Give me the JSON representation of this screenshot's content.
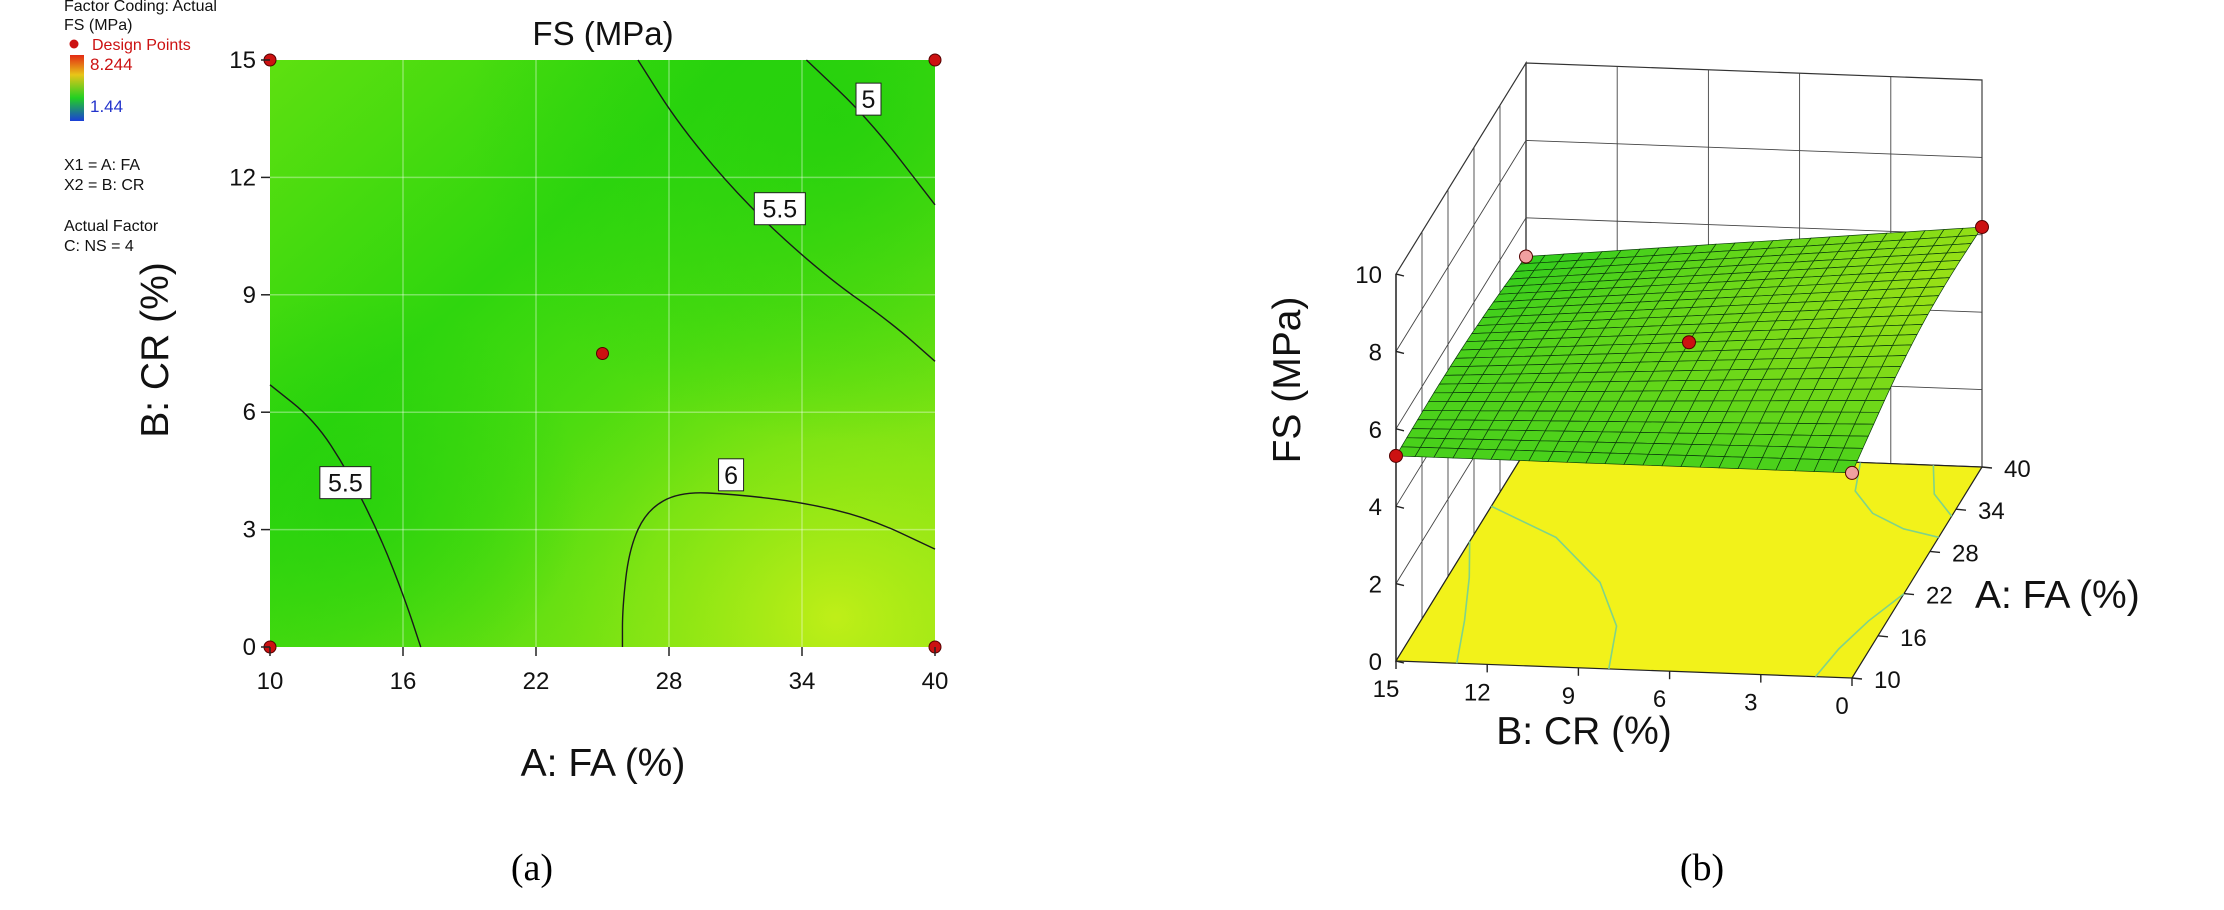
{
  "chart_data": [
    {
      "type": "contour",
      "panel_label": "(a)",
      "title": "FS (MPa)",
      "xlabel": "A: FA (%)",
      "ylabel": "B: CR (%)",
      "xlim": [
        10,
        40
      ],
      "ylim": [
        0,
        15
      ],
      "x_ticks": [
        "10",
        "16",
        "22",
        "28",
        "34",
        "40"
      ],
      "y_ticks": [
        "0",
        "3",
        "6",
        "9",
        "12",
        "15"
      ],
      "grid": true,
      "legend": {
        "factor_coding": "Factor Coding: Actual",
        "response": "FS (MPa)",
        "design_points": "Design Points",
        "max_value": "8.244",
        "min_value": "1.44",
        "x1": "X1 = A: FA",
        "x2": "X2 = B: CR",
        "actual_factor_title": "Actual Factor",
        "actual_factor": "C: NS = 4"
      },
      "design_points": [
        {
          "x": 10,
          "y": 15
        },
        {
          "x": 40,
          "y": 15
        },
        {
          "x": 25,
          "y": 7.5
        },
        {
          "x": 10,
          "y": 0
        },
        {
          "x": 40,
          "y": 0
        }
      ],
      "contours": [
        {
          "level": "5",
          "points": [
            [
              34.2,
              15
            ],
            [
              37,
              13.5
            ],
            [
              40,
              11.3
            ]
          ]
        },
        {
          "level": "5.5",
          "points": [
            [
              26.6,
              15
            ],
            [
              28.5,
              13.3
            ],
            [
              31.5,
              11.3
            ],
            [
              35,
              9.5
            ],
            [
              38,
              8.3
            ],
            [
              40,
              7.3
            ]
          ]
        },
        {
          "level": "5.5",
          "points": [
            [
              10,
              6.7
            ],
            [
              12,
              5.8
            ],
            [
              13.5,
              4.5
            ],
            [
              15,
              2.8
            ],
            [
              16.1,
              1.2
            ],
            [
              16.8,
              0
            ]
          ]
        },
        {
          "level": "6",
          "points": [
            [
              25.9,
              0
            ],
            [
              25.9,
              1
            ],
            [
              26.2,
              2.5
            ],
            [
              27,
              3.5
            ],
            [
              28.5,
              3.97
            ],
            [
              31,
              3.9
            ],
            [
              34,
              3.7
            ],
            [
              37,
              3.3
            ],
            [
              40,
              2.5
            ]
          ]
        }
      ]
    },
    {
      "type": "surface3d",
      "panel_label": "(b)",
      "zlabel": "FS (MPa)",
      "xlabel": "A: FA (%)",
      "ylabel": "B: CR (%)",
      "zlim": [
        0,
        10
      ],
      "z_ticks": [
        "0",
        "2",
        "4",
        "6",
        "8",
        "10"
      ],
      "a_ticks": [
        "10",
        "16",
        "22",
        "28",
        "34",
        "40"
      ],
      "b_ticks": [
        "15",
        "12",
        "9",
        "6",
        "3",
        "0"
      ],
      "design_points": [
        {
          "a": 10,
          "b": 15,
          "fs": 5.5
        },
        {
          "a": 40,
          "b": 15,
          "fs": 5.0
        },
        {
          "a": 25,
          "b": 7.5,
          "fs": 5.8
        },
        {
          "a": 10,
          "b": 0,
          "fs": 5.3
        },
        {
          "a": 40,
          "b": 0,
          "fs": 6.2
        }
      ],
      "colors": {
        "surface": "#22dd22",
        "floor": "#f2f21a",
        "point": "#cc1111",
        "point_light": "#f0a0a0"
      }
    }
  ]
}
